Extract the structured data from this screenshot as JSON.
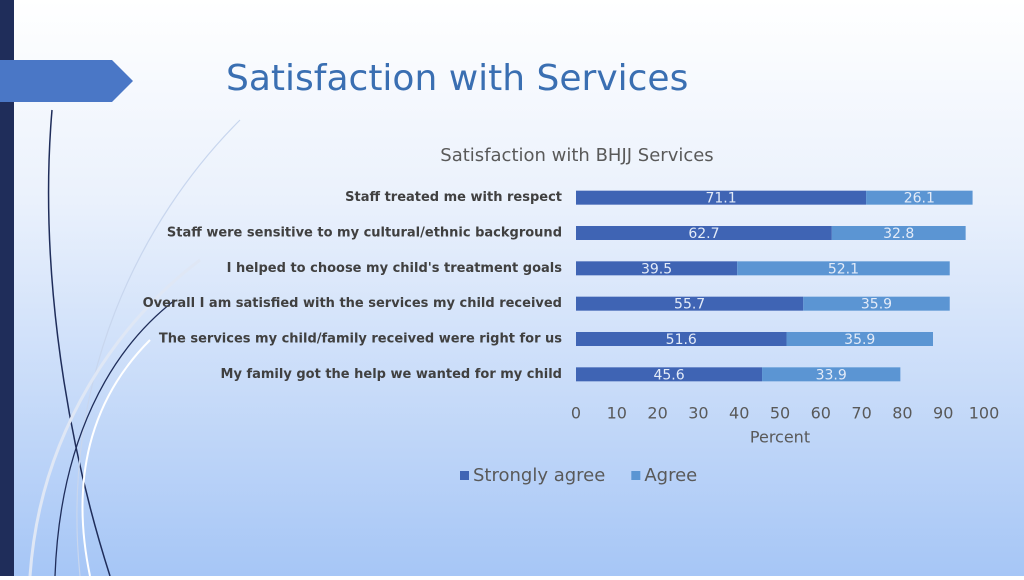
{
  "slide_title": "Satisfaction with Services",
  "chart_data": {
    "type": "bar",
    "orientation": "horizontal",
    "stacked": true,
    "title": "Satisfaction with BHJJ Services",
    "xlabel": "Percent",
    "categories": [
      "Staff treated me with respect",
      "Staff were sensitive to my cultural/ethnic background",
      "I helped to choose my child's treatment goals",
      "Overall I am satisfied with the services my child received",
      "The services my child/family received were right for us",
      "My family got the help we wanted for my child"
    ],
    "series": [
      {
        "name": "Strongly agree",
        "color": "#3f64b4",
        "values": [
          71.1,
          62.7,
          39.5,
          55.7,
          51.6,
          45.6
        ]
      },
      {
        "name": "Agree",
        "color": "#5b95d3",
        "values": [
          26.1,
          32.8,
          52.1,
          35.9,
          35.9,
          33.9
        ]
      }
    ],
    "xlim": [
      0,
      100
    ],
    "xticks": [
      0,
      10,
      20,
      30,
      40,
      50,
      60,
      70,
      80,
      90,
      100
    ],
    "legend": "bottom"
  }
}
